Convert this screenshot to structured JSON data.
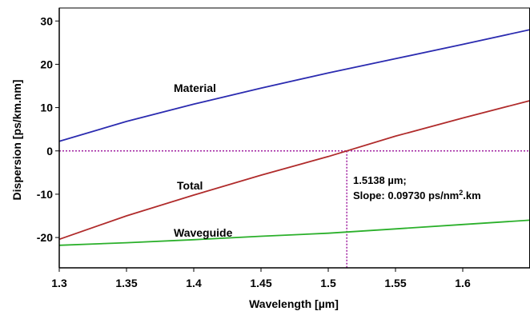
{
  "chart_data": {
    "type": "line",
    "xlabel": "Wavelength [µm]",
    "ylabel": "Dispersion [ps/km.nm]",
    "xlim": [
      1.3,
      1.65
    ],
    "ylim": [
      -27,
      33
    ],
    "xticks": [
      1.3,
      1.35,
      1.4,
      1.45,
      1.5,
      1.55,
      1.6
    ],
    "xtick_labels": [
      "1.3",
      "1.35",
      "1.4",
      "1.45",
      "1.5",
      "1.55",
      "1.6"
    ],
    "yticks": [
      -20,
      -10,
      0,
      10,
      20,
      30
    ],
    "ytick_labels": [
      "-20",
      "-10",
      "0",
      "10",
      "20",
      "30"
    ],
    "grid": false,
    "series": [
      {
        "name": "Material",
        "color": "#2b2bb0",
        "x": [
          1.3,
          1.35,
          1.4,
          1.45,
          1.5,
          1.55,
          1.6,
          1.65
        ],
        "y": [
          2.2,
          6.8,
          10.8,
          14.5,
          18.0,
          21.3,
          24.6,
          28.0
        ]
      },
      {
        "name": "Total",
        "color": "#b02b2b",
        "x": [
          1.3,
          1.35,
          1.4,
          1.45,
          1.5,
          1.55,
          1.6,
          1.65
        ],
        "y": [
          -20.4,
          -15.0,
          -10.2,
          -5.6,
          -1.3,
          3.4,
          7.6,
          11.6
        ]
      },
      {
        "name": "Waveguide",
        "color": "#2bb02b",
        "x": [
          1.3,
          1.35,
          1.4,
          1.45,
          1.5,
          1.55,
          1.6,
          1.65
        ],
        "y": [
          -21.8,
          -21.2,
          -20.5,
          -19.7,
          -19.0,
          -18.0,
          -17.0,
          -16.0
        ]
      }
    ],
    "reference_lines": {
      "color": "#a020a0",
      "y_zero": 0,
      "x_zero_dispersion": 1.5138
    },
    "annotation": {
      "line1": "1.5138  µm;",
      "line2_prefix": "Slope: 0.09730  ps/nm",
      "line2_sup": "2",
      "line2_suffix": ".km"
    }
  }
}
